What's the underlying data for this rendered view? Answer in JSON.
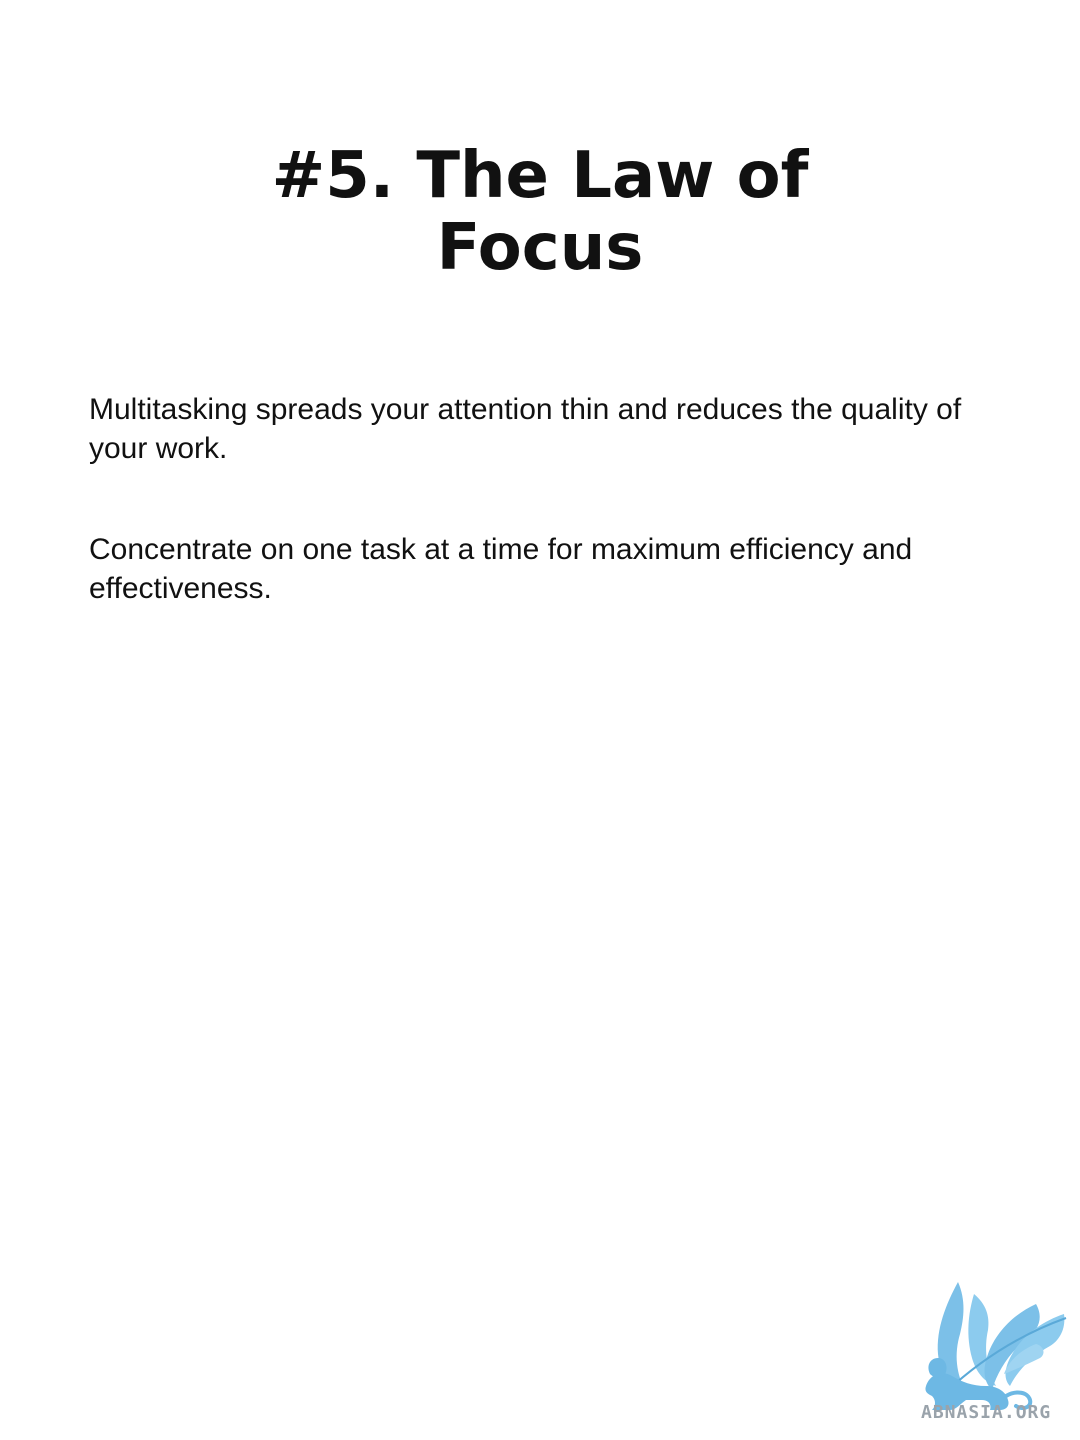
{
  "slide": {
    "title_line1": "#5. The Law of",
    "title_line2": "Focus",
    "paragraphs": [
      "Multitasking spreads your attention thin and reduces the quality of your work.",
      "Concentrate on one task at a time for maximum efficiency and effectiveness."
    ]
  },
  "logo": {
    "text": "ABNASIA.ORG",
    "color": "#7cc0e8",
    "icon": "griffin-icon"
  }
}
